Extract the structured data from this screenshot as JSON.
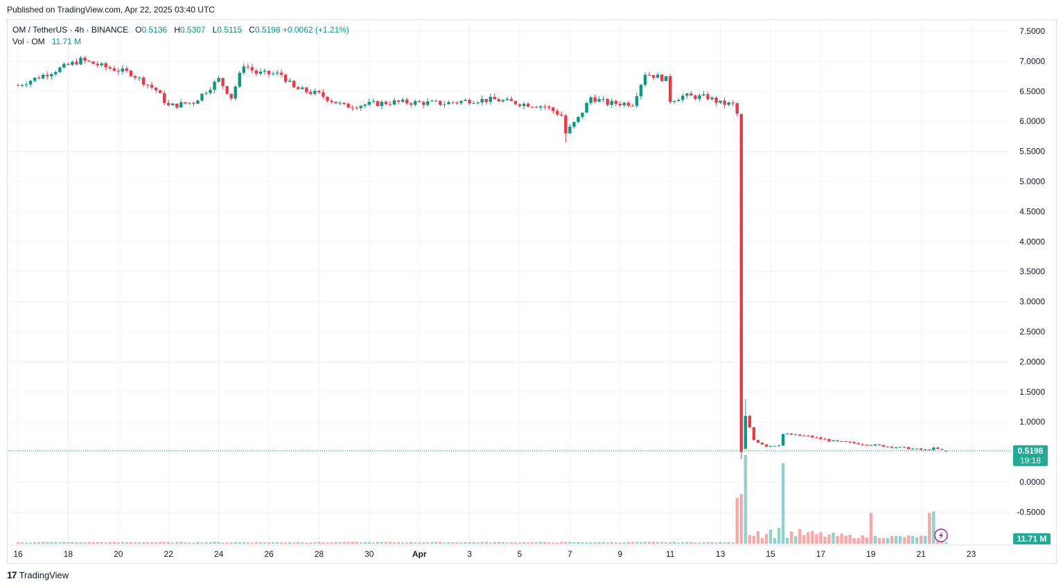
{
  "header": {
    "published": "Published on TradingView.com, Apr 22, 2025 03:40 UTC"
  },
  "legend": {
    "symbol": "OM / TetherUS · 4h · BINANCE",
    "open_label": "O",
    "open": "0.5136",
    "high_label": "H",
    "high": "0.5307",
    "low_label": "L",
    "low": "0.5115",
    "close_label": "C",
    "close": "0.5198",
    "change": "+0.0062 (+1.21%)",
    "vol_label": "Vol · OM",
    "vol": "11.71 M"
  },
  "price_tag": {
    "price": "0.5198",
    "countdown": "19:18",
    "vol": "11.71 M"
  },
  "footer": {
    "brand": "TradingView",
    "logo": "17"
  },
  "colors": {
    "up": "#089981",
    "down": "#f23645",
    "up_vol": "#92d2cc",
    "down_vol": "#f7a9a7",
    "tag_bg": "#22ab94"
  },
  "chart_data": {
    "type": "candlestick",
    "interval": "4h",
    "grid": true,
    "ylim": [
      -0.75,
      7.75
    ],
    "y_ticks": [
      "7.5000",
      "7.0000",
      "6.5000",
      "6.0000",
      "5.5000",
      "5.0000",
      "4.5000",
      "4.0000",
      "3.5000",
      "3.0000",
      "2.5000",
      "2.0000",
      "1.5000",
      "1.0000",
      "0.0000",
      "-0.5000"
    ],
    "x_ticks": [
      "16",
      "18",
      "20",
      "22",
      "24",
      "26",
      "28",
      "30",
      "Apr",
      "3",
      "5",
      "7",
      "9",
      "11",
      "13",
      "15",
      "17",
      "19",
      "21",
      "23"
    ],
    "ohlc_anchors": [
      [
        "Mar 16 00:00",
        6.6
      ],
      [
        "Mar 17 12:00",
        6.85
      ],
      [
        "Mar 18 12:00",
        7.02
      ],
      [
        "Mar 19 12:00",
        6.9
      ],
      [
        "Mar 20 12:00",
        6.8
      ],
      [
        "Mar 21 12:00",
        6.52
      ],
      [
        "Mar 22 00:00",
        6.25
      ],
      [
        "Mar 23 00:00",
        6.32
      ],
      [
        "Mar 24 00:00",
        6.7
      ],
      [
        "Mar 24 12:00",
        6.4
      ],
      [
        "Mar 25 00:00",
        6.95
      ],
      [
        "Mar 25 12:00",
        6.8
      ],
      [
        "Mar 26 12:00",
        6.78
      ],
      [
        "Mar 27 00:00",
        6.55
      ],
      [
        "Mar 28 00:00",
        6.45
      ],
      [
        "Mar 29 00:00",
        6.25
      ],
      [
        "Mar 31 00:00",
        6.32
      ],
      [
        "Apr 2 00:00",
        6.3
      ],
      [
        "Apr 3 00:00",
        6.35
      ],
      [
        "Apr 4 00:00",
        6.36
      ],
      [
        "Apr 5 00:00",
        6.3
      ],
      [
        "Apr 6 00:00",
        6.25
      ],
      [
        "Apr 6 16:00",
        6.1
      ],
      [
        "Apr 6 20:00",
        5.8
      ],
      [
        "Apr 7 08:00",
        6.05
      ],
      [
        "Apr 7 20:00",
        6.4
      ],
      [
        "Apr 8 12:00",
        6.3
      ],
      [
        "Apr 9 12:00",
        6.3
      ],
      [
        "Apr 10 00:00",
        6.8
      ],
      [
        "Apr 10 20:00",
        6.7
      ],
      [
        "Apr 11 00:00",
        6.35
      ],
      [
        "Apr 11 12:00",
        6.42
      ],
      [
        "Apr 12 12:00",
        6.4
      ],
      [
        "Apr 13 00:00",
        6.3
      ],
      [
        "Apr 13 12:00",
        6.28
      ],
      [
        "Apr 13 16:00",
        6.12
      ],
      [
        "Apr 13 20:00",
        0.5
      ],
      [
        "Apr 14 00:00",
        1.1
      ],
      [
        "Apr 14 08:00",
        0.7
      ],
      [
        "Apr 14 20:00",
        0.6
      ],
      [
        "Apr 15 08:00",
        0.62
      ],
      [
        "Apr 15 12:00",
        0.8
      ],
      [
        "Apr 16 12:00",
        0.76
      ],
      [
        "Apr 17 12:00",
        0.68
      ],
      [
        "Apr 19 00:00",
        0.62
      ],
      [
        "Apr 20 12:00",
        0.56
      ],
      [
        "Apr 21 04:00",
        0.53
      ],
      [
        "Apr 21 12:00",
        0.56
      ],
      [
        "Apr 22 00:00",
        0.5198
      ]
    ],
    "last_candle": {
      "open": 0.5136,
      "high": 0.5307,
      "low": 0.5115,
      "close": 0.5198
    },
    "volume_spikes_M": [
      [
        "Apr 13 16:00",
        340
      ],
      [
        "Apr 13 20:00",
        370
      ],
      [
        "Apr 14 00:00",
        660
      ],
      [
        "Apr 15 12:00",
        600
      ],
      [
        "Apr 19 00:00",
        230
      ],
      [
        "Apr 21 08:00",
        230
      ],
      [
        "Apr 21 12:00",
        240
      ]
    ],
    "volume_last_M": 11.71
  }
}
